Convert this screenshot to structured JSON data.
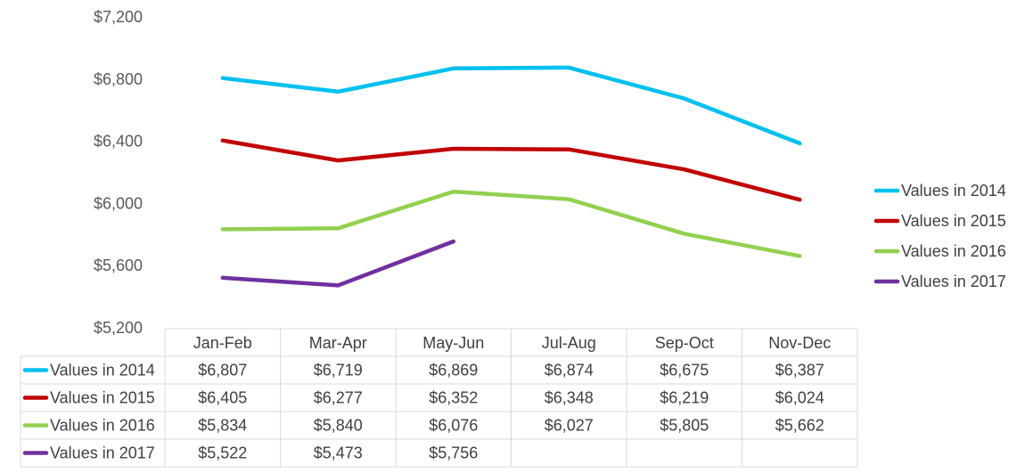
{
  "chart_data": {
    "type": "line",
    "categories": [
      "Jan-Feb",
      "Mar-Apr",
      "May-Jun",
      "Jul-Aug",
      "Sep-Oct",
      "Nov-Dec"
    ],
    "ylim": [
      5200,
      7200
    ],
    "y_ticks": [
      7200,
      6800,
      6400,
      6000,
      5600,
      5200
    ],
    "y_tick_labels": [
      "$7,200",
      "$6,800",
      "$6,400",
      "$6,000",
      "$5,600",
      "$5,200"
    ],
    "legend_position": "right",
    "data_table": true,
    "grid": false,
    "series": [
      {
        "name": "Values in 2014",
        "color": "#00c0f0",
        "values": [
          6807,
          6719,
          6869,
          6874,
          6675,
          6387
        ],
        "labels": [
          "$6,807",
          "$6,719",
          "$6,869",
          "$6,874",
          "$6,675",
          "$6,387"
        ]
      },
      {
        "name": "Values in 2015",
        "color": "#c00000",
        "values": [
          6405,
          6277,
          6352,
          6348,
          6219,
          6024
        ],
        "labels": [
          "$6,405",
          "$6,277",
          "$6,352",
          "$6,348",
          "$6,219",
          "$6,024"
        ]
      },
      {
        "name": "Values in 2016",
        "color": "#92d050",
        "values": [
          5834,
          5840,
          6076,
          6027,
          5805,
          5662
        ],
        "labels": [
          "$5,834",
          "$5,840",
          "$6,076",
          "$6,027",
          "$5,805",
          "$5,662"
        ]
      },
      {
        "name": "Values in 2017",
        "color": "#7030a0",
        "values": [
          5522,
          5473,
          5756,
          null,
          null,
          null
        ],
        "labels": [
          "$5,522",
          "$5,473",
          "$5,756",
          "",
          "",
          ""
        ]
      }
    ]
  }
}
